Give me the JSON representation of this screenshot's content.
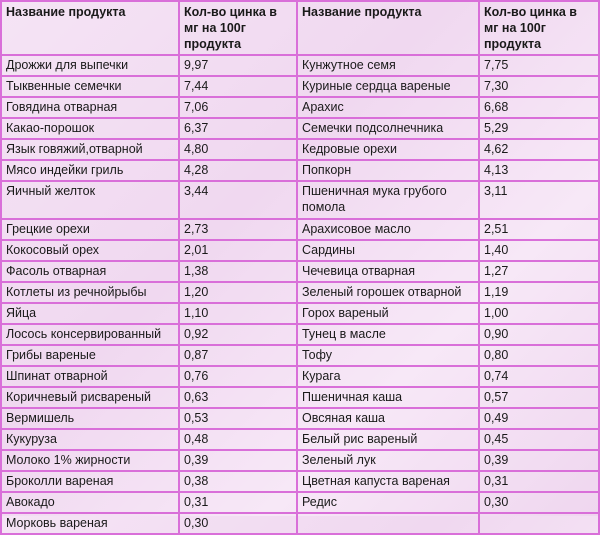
{
  "table": {
    "headers": [
      "Название продукта",
      "Кол-во цинка в мг на 100г продукта",
      "Название продукта",
      "Кол-во цинка в мг на 100г продукта"
    ],
    "rows": [
      [
        "Дрожжи для выпечки",
        "9,97",
        "Кунжутное семя",
        "7,75"
      ],
      [
        "Тыквенные семечки",
        "7,44",
        "Куриные сердца вареные",
        "7,30"
      ],
      [
        "Говядина отварная",
        "7,06",
        "Арахис",
        "6,68"
      ],
      [
        "Какао-порошок",
        "6,37",
        "Семечки подсолнечника",
        "5,29"
      ],
      [
        "Язык говяжий,отварной",
        "4,80",
        "Кедровые орехи",
        "4,62"
      ],
      [
        "Мясо индейки гриль",
        "4,28",
        "Попкорн",
        "4,13"
      ],
      [
        "Яичный желток",
        "3,44",
        "Пшеничная мука грубого помола",
        "3,11"
      ],
      [
        "Грецкие орехи",
        "2,73",
        "Арахисовое масло",
        "2,51"
      ],
      [
        "Кокосовый орех",
        "2,01",
        "Сардины",
        "1,40"
      ],
      [
        "Фасоль отварная",
        "1,38",
        "Чечевица отварная",
        "1,27"
      ],
      [
        "Котлеты из речнойрыбы",
        "1,20",
        "Зеленый горошек отварной",
        "1,19"
      ],
      [
        "Яйца",
        "1,10",
        "Горох вареный",
        "1,00"
      ],
      [
        "Лосось консервированный",
        "0,92",
        "Тунец в масле",
        "0,90"
      ],
      [
        "Грибы вареные",
        "0,87",
        "Тофу",
        "0,80"
      ],
      [
        "Шпинат отварной",
        "0,76",
        "Курага",
        "0,74"
      ],
      [
        "Коричневый рисвареный",
        "0,63",
        "Пшеничная каша",
        "0,57"
      ],
      [
        "Вермишель",
        "0,53",
        "Овсяная каша",
        "0,49"
      ],
      [
        "Кукуруза",
        "0,48",
        "Белый рис вареный",
        "0,45"
      ],
      [
        "Молоко 1% жирности",
        "0,39",
        "Зеленый лук",
        "0,39"
      ],
      [
        "Броколли вареная",
        "0,38",
        "Цветная капуста вареная",
        "0,31"
      ],
      [
        "Авокадо",
        "0,31",
        "Редис",
        "0,30"
      ],
      [
        "Морковь вареная",
        "0,30",
        "",
        ""
      ]
    ]
  },
  "colors": {
    "border": "#d96fd9",
    "background": "#f3e0f3",
    "text": "#1a1a1a"
  }
}
